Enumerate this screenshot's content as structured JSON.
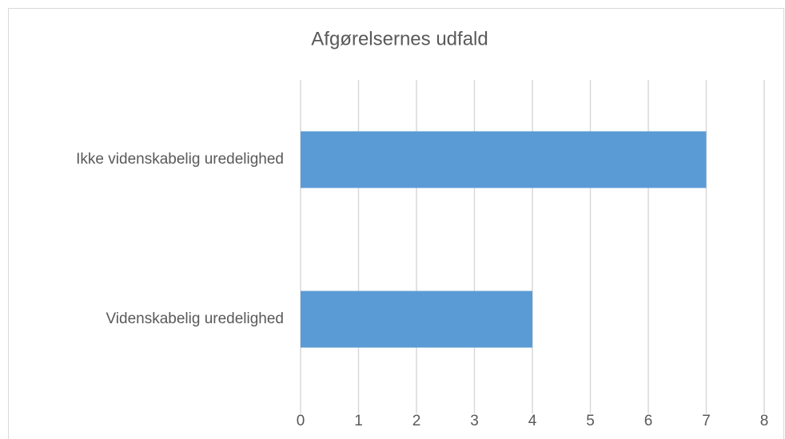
{
  "chart_data": {
    "type": "bar",
    "orientation": "horizontal",
    "title": "Afgørelsernes udfald",
    "categories": [
      "Ikke videnskabelig uredelighed",
      "Videnskabelig uredelighed"
    ],
    "values": [
      7,
      4
    ],
    "color": "#5b9bd5",
    "xlim": [
      0,
      8
    ],
    "xticks": [
      0,
      1,
      2,
      3,
      4,
      5,
      6,
      7,
      8
    ],
    "grid": true
  }
}
